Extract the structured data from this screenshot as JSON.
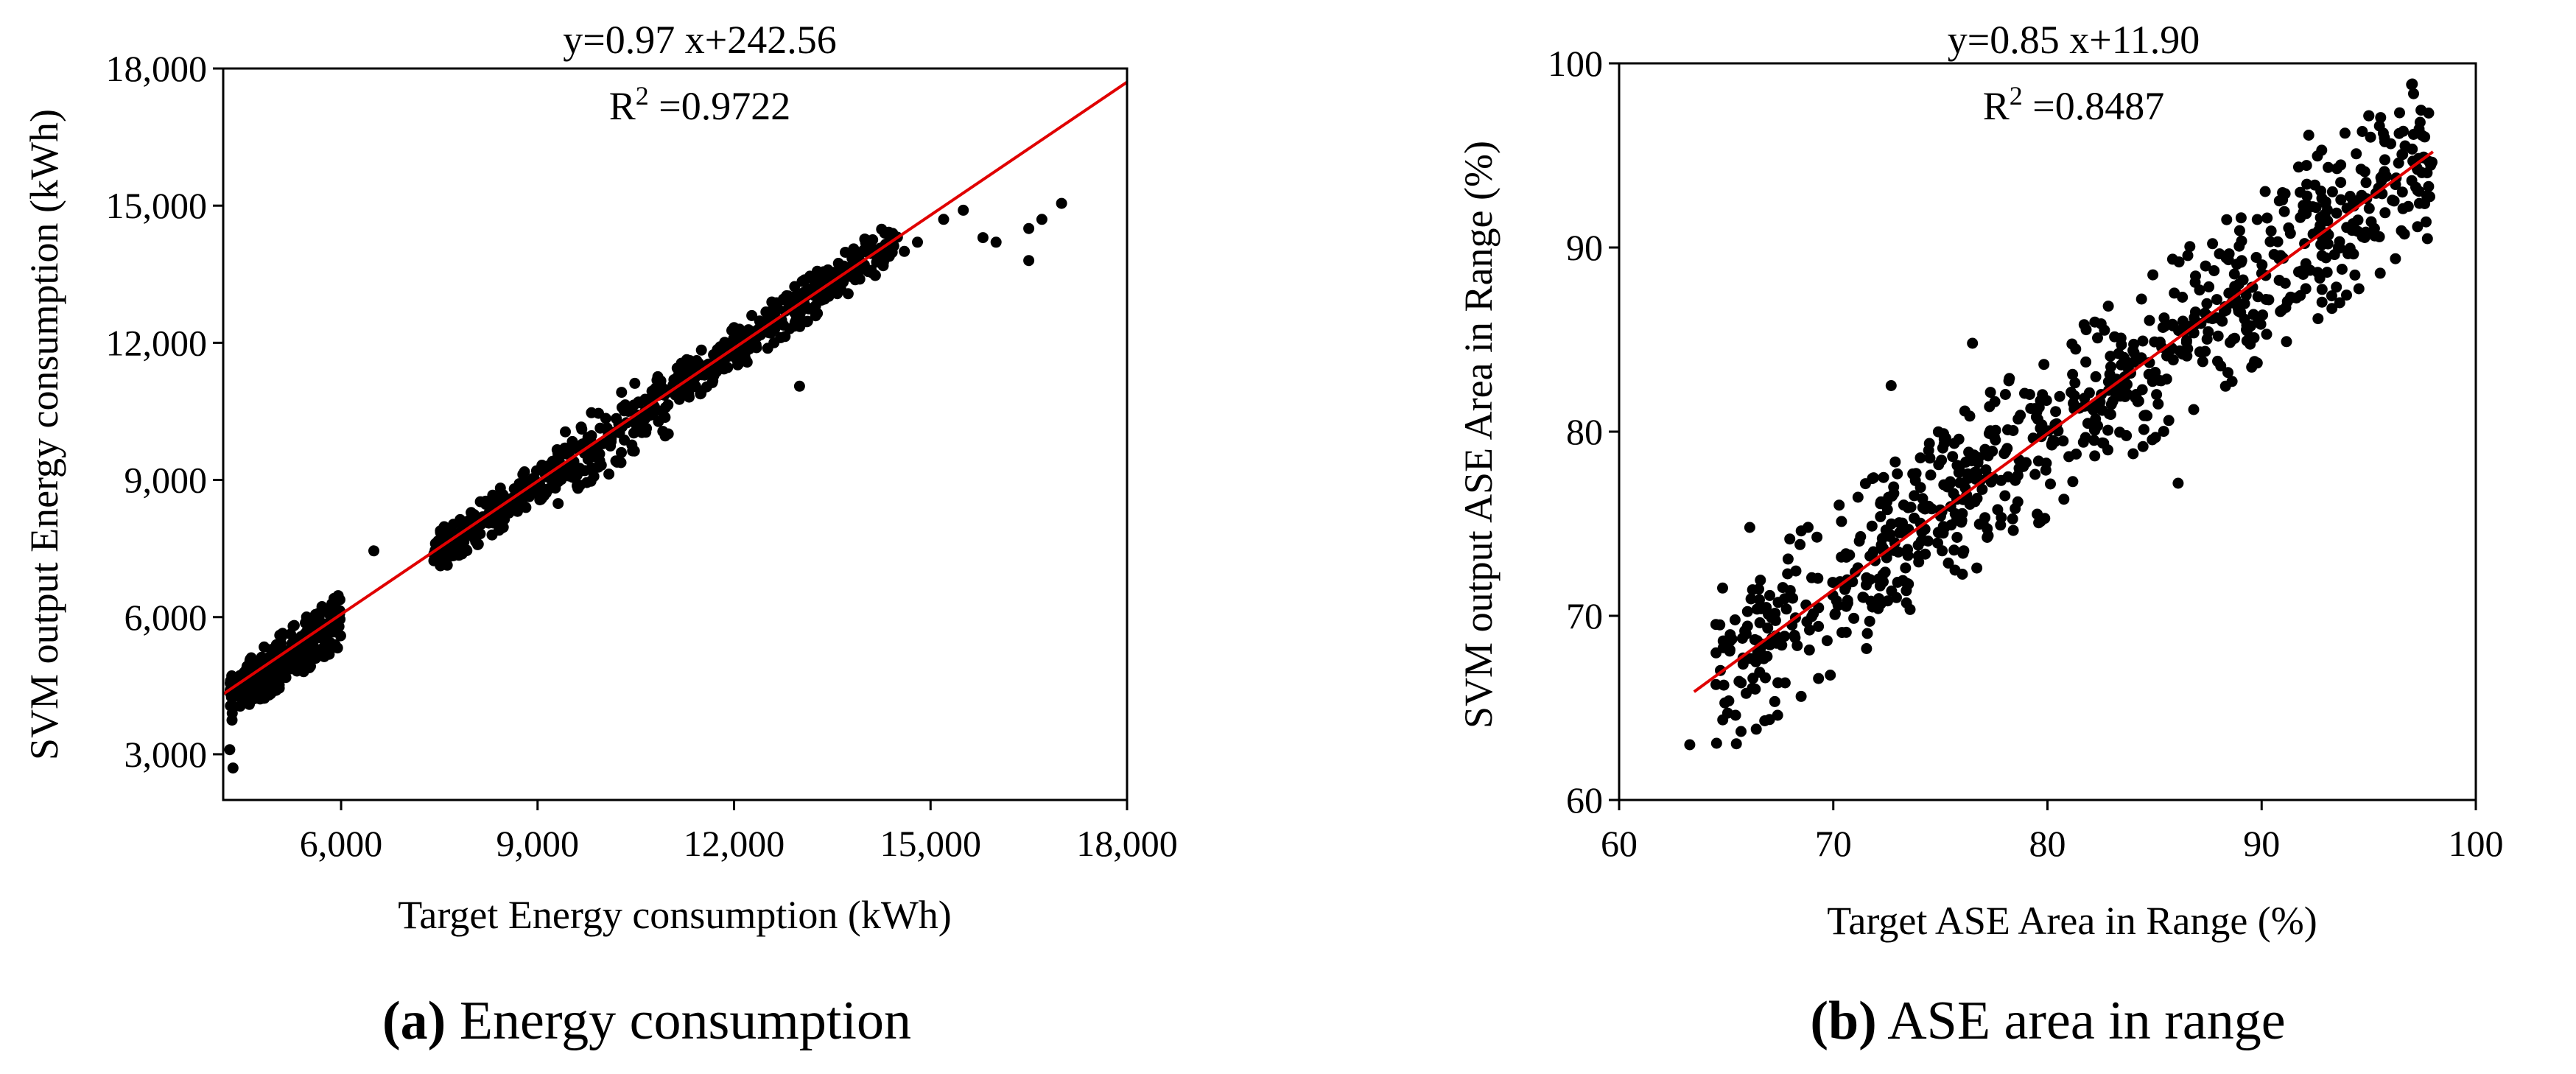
{
  "chart_data": [
    {
      "type": "scatter",
      "id": "a",
      "equation": "y=0.97 x+242.56",
      "r2_prefix": "R",
      "r2_sup": "2",
      "r2_value": " =0.9722",
      "xlabel": "Target  Energy consumption (kWh)",
      "ylabel": "SVM output Energy consumption (kWh)",
      "xlim": [
        4200,
        18000
      ],
      "ylim": [
        2000,
        18000
      ],
      "xticks": [
        6000,
        9000,
        12000,
        15000,
        18000
      ],
      "xtick_labels": [
        "6,000",
        "9,000",
        "12,000",
        "15,000",
        "18,000"
      ],
      "yticks": [
        3000,
        6000,
        9000,
        12000,
        15000,
        18000
      ],
      "ytick_labels": [
        "3,000",
        "6,000",
        "9,000",
        "12,000",
        "15,000",
        "18,000"
      ],
      "fit": {
        "slope": 0.97,
        "intercept": 242.56,
        "x_range": [
          4200,
          18000
        ]
      },
      "caption_letter": "(a)",
      "caption_text": " Energy consumption",
      "point_color": "#000000",
      "fit_color": "#e00000",
      "clusters": [
        {
          "x": [
            4300,
            6000
          ],
          "y_offset": [
            -700,
            450
          ],
          "count": 320
        },
        {
          "x": [
            7400,
            9300
          ],
          "y_offset": [
            -500,
            400
          ],
          "count": 260
        },
        {
          "x": [
            9300,
            11000
          ],
          "y_offset": [
            -900,
            700
          ],
          "count": 140
        },
        {
          "x": [
            11000,
            14500
          ],
          "y_offset": [
            -500,
            450
          ],
          "count": 330
        }
      ],
      "points": [
        [
          4350,
          2700
        ],
        [
          4300,
          3100
        ],
        [
          6500,
          7450
        ],
        [
          10500,
          10350
        ],
        [
          13000,
          11050
        ],
        [
          14600,
          14000
        ],
        [
          15200,
          14700
        ],
        [
          15500,
          14900
        ],
        [
          15800,
          14300
        ],
        [
          16000,
          14200
        ],
        [
          16500,
          13800
        ],
        [
          16500,
          14500
        ],
        [
          16700,
          14700
        ],
        [
          17000,
          15050
        ],
        [
          14300,
          14400
        ],
        [
          14800,
          14200
        ]
      ]
    },
    {
      "type": "scatter",
      "id": "b",
      "equation": "y=0.85 x+11.90",
      "r2_prefix": "R",
      "r2_sup": "2",
      "r2_value": " =0.8487",
      "xlabel": "Target  ASE  Area in Range (%)",
      "ylabel": "SVM output  ASE  Area in Range (%)",
      "xlim": [
        60,
        100
      ],
      "ylim": [
        60,
        100
      ],
      "xticks": [
        60,
        70,
        80,
        90,
        100
      ],
      "xtick_labels": [
        "60",
        "70",
        "80",
        "90",
        "100"
      ],
      "yticks": [
        60,
        70,
        80,
        90,
        100
      ],
      "ytick_labels": [
        "60",
        "70",
        "80",
        "90",
        "100"
      ],
      "fit": {
        "slope": 0.85,
        "intercept": 11.9,
        "x_range": [
          63.5,
          98
        ]
      },
      "caption_letter": "(b)",
      "caption_text": " ASE area in range",
      "point_color": "#000000",
      "fit_color": "#e00000",
      "clusters": [
        {
          "x": [
            64.5,
            98
          ],
          "y_offset": [
            -4.5,
            4.5
          ],
          "count": 820
        }
      ],
      "points": [
        [
          63.3,
          63.0
        ],
        [
          97.8,
          97.3
        ],
        [
          97.4,
          96.8
        ],
        [
          95.5,
          96.6
        ],
        [
          94.7,
          96.3
        ],
        [
          92.2,
          96.1
        ],
        [
          66.1,
          74.8
        ],
        [
          66.8,
          64.3
        ],
        [
          67.4,
          64.6
        ],
        [
          72.7,
          82.5
        ],
        [
          76.5,
          84.8
        ],
        [
          86.1,
          77.2
        ]
      ]
    }
  ]
}
